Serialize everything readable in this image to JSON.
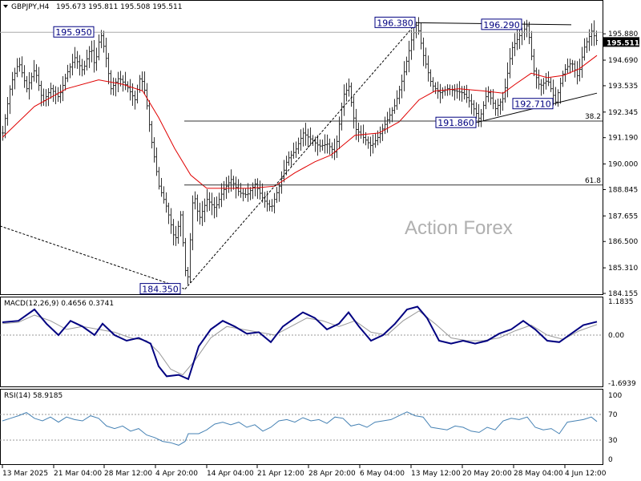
{
  "header": {
    "symbol": "GBPJPY,H4",
    "ohlc": "195.673 195.811 195.508 195.511"
  },
  "watermark": "Action Forex",
  "colors": {
    "price": "#333333",
    "ma": "#e00000",
    "macd": "#000080",
    "signal": "#999999",
    "rsi": "#4682b4",
    "annotation": "#000080"
  },
  "chart_data": [
    {
      "type": "candlestick",
      "title": "GBPJPY,H4",
      "ylim": [
        184.155,
        196.9
      ],
      "y_ticks": [
        195.88,
        194.69,
        193.535,
        192.345,
        191.19,
        190.0,
        188.845,
        187.655,
        186.5,
        185.31,
        184.155
      ],
      "y_tick_labels": [
        "195.880",
        "194.690",
        "193.535",
        "192.345",
        "191.190",
        "190.000",
        "188.845",
        "187.655",
        "186.500",
        "185.310",
        "184.155"
      ],
      "current_price": "195.511",
      "x_tick_labels": [
        "13 Mar 2025",
        "21 Mar 04:00",
        "28 Mar 12:00",
        "4 Apr 20:00",
        "14 Apr 04:00",
        "21 Apr 12:00",
        "28 Apr 20:00",
        "6 May 04:00",
        "13 May 12:00",
        "20 May 20:00",
        "28 May 04:00",
        "4 Jun 12:00"
      ],
      "price_path": [
        [
          0,
          191.4
        ],
        [
          10,
          193.6
        ],
        [
          20,
          194.6
        ],
        [
          30,
          193.4
        ],
        [
          40,
          194.3
        ],
        [
          50,
          192.8
        ],
        [
          60,
          193.4
        ],
        [
          70,
          193.0
        ],
        [
          80,
          194.1
        ],
        [
          90,
          194.8
        ],
        [
          100,
          194.2
        ],
        [
          110,
          195.3
        ],
        [
          115,
          194.4
        ],
        [
          122,
          195.95
        ],
        [
          128,
          195.0
        ],
        [
          135,
          193.4
        ],
        [
          145,
          193.9
        ],
        [
          155,
          193.5
        ],
        [
          165,
          192.9
        ],
        [
          172,
          194.0
        ],
        [
          178,
          193.2
        ],
        [
          185,
          191.2
        ],
        [
          195,
          189.0
        ],
        [
          205,
          188.0
        ],
        [
          215,
          186.5
        ],
        [
          222,
          187.7
        ],
        [
          230,
          184.35
        ],
        [
          238,
          188.8
        ],
        [
          245,
          187.5
        ],
        [
          255,
          188.4
        ],
        [
          265,
          188.0
        ],
        [
          275,
          188.8
        ],
        [
          285,
          189.3
        ],
        [
          295,
          188.7
        ],
        [
          305,
          188.6
        ],
        [
          315,
          189.1
        ],
        [
          325,
          188.4
        ],
        [
          335,
          188.0
        ],
        [
          345,
          189.0
        ],
        [
          355,
          190.2
        ],
        [
          365,
          190.6
        ],
        [
          375,
          191.4
        ],
        [
          385,
          191.1
        ],
        [
          395,
          190.8
        ],
        [
          405,
          190.9
        ],
        [
          415,
          190.5
        ],
        [
          425,
          193.1
        ],
        [
          432,
          193.5
        ],
        [
          440,
          191.6
        ],
        [
          450,
          191.2
        ],
        [
          460,
          190.8
        ],
        [
          470,
          191.3
        ],
        [
          480,
          192.0
        ],
        [
          490,
          192.7
        ],
        [
          500,
          194.0
        ],
        [
          510,
          195.6
        ],
        [
          517,
          196.38
        ],
        [
          525,
          194.9
        ],
        [
          535,
          193.6
        ],
        [
          545,
          193.2
        ],
        [
          555,
          193.4
        ],
        [
          565,
          193.3
        ],
        [
          575,
          193.2
        ],
        [
          585,
          192.7
        ],
        [
          595,
          192.0
        ],
        [
          605,
          193.3
        ],
        [
          615,
          192.5
        ],
        [
          625,
          193.0
        ],
        [
          635,
          195.2
        ],
        [
          645,
          195.8
        ],
        [
          655,
          196.29
        ],
        [
          662,
          194.3
        ],
        [
          670,
          193.5
        ],
        [
          680,
          193.8
        ],
        [
          690,
          192.8
        ],
        [
          700,
          194.2
        ],
        [
          710,
          194.6
        ],
        [
          718,
          193.9
        ],
        [
          725,
          195.2
        ],
        [
          735,
          196.0
        ],
        [
          742,
          195.51
        ]
      ],
      "moving_average": [
        [
          0,
          191.2
        ],
        [
          40,
          192.6
        ],
        [
          80,
          193.4
        ],
        [
          120,
          193.8
        ],
        [
          150,
          193.6
        ],
        [
          175,
          193.3
        ],
        [
          195,
          192.1
        ],
        [
          215,
          190.7
        ],
        [
          235,
          189.5
        ],
        [
          255,
          188.9
        ],
        [
          280,
          188.9
        ],
        [
          310,
          188.9
        ],
        [
          340,
          189.0
        ],
        [
          365,
          189.6
        ],
        [
          390,
          190.1
        ],
        [
          410,
          190.4
        ],
        [
          440,
          191.3
        ],
        [
          470,
          191.4
        ],
        [
          495,
          191.9
        ],
        [
          520,
          192.9
        ],
        [
          540,
          193.3
        ],
        [
          570,
          193.4
        ],
        [
          600,
          193.3
        ],
        [
          625,
          193.2
        ],
        [
          640,
          193.6
        ],
        [
          660,
          194.1
        ],
        [
          680,
          193.9
        ],
        [
          700,
          194.0
        ],
        [
          720,
          194.3
        ],
        [
          742,
          194.9
        ]
      ],
      "levels": [
        {
          "label": "196.380",
          "value": 196.38
        },
        {
          "label": "196.290",
          "value": 196.29
        },
        {
          "label": "195.950",
          "value": 195.95
        },
        {
          "label": "192.710",
          "value": 192.71
        },
        {
          "label": "191.860",
          "value": 191.86
        },
        {
          "label": "184.350",
          "value": 184.35
        }
      ],
      "fib_levels": [
        {
          "label": "38.2",
          "value": 191.94
        },
        {
          "label": "61.8",
          "value": 189.05
        }
      ],
      "grid": false
    },
    {
      "type": "line",
      "title": "MACD(12,26,9) 0.4656 0.3741",
      "ylim": [
        -1.6939,
        1.1835
      ],
      "y_tick_labels": [
        "1.1835",
        "0.00",
        "-1.6939"
      ],
      "series": [
        {
          "name": "MACD",
          "values": [
            [
              0,
              0.45
            ],
            [
              20,
              0.5
            ],
            [
              40,
              0.9
            ],
            [
              55,
              0.4
            ],
            [
              70,
              0.0
            ],
            [
              85,
              0.5
            ],
            [
              100,
              0.3
            ],
            [
              115,
              0.0
            ],
            [
              125,
              0.4
            ],
            [
              140,
              0.0
            ],
            [
              155,
              -0.2
            ],
            [
              170,
              -0.1
            ],
            [
              185,
              -0.3
            ],
            [
              195,
              -1.1
            ],
            [
              205,
              -1.45
            ],
            [
              220,
              -1.4
            ],
            [
              232,
              -1.55
            ],
            [
              245,
              -0.4
            ],
            [
              260,
              0.2
            ],
            [
              275,
              0.5
            ],
            [
              290,
              0.3
            ],
            [
              305,
              0.05
            ],
            [
              320,
              0.1
            ],
            [
              335,
              -0.25
            ],
            [
              350,
              0.3
            ],
            [
              360,
              0.5
            ],
            [
              375,
              0.8
            ],
            [
              390,
              0.6
            ],
            [
              405,
              0.2
            ],
            [
              420,
              0.4
            ],
            [
              432,
              0.8
            ],
            [
              445,
              0.3
            ],
            [
              460,
              -0.2
            ],
            [
              475,
              0.0
            ],
            [
              490,
              0.4
            ],
            [
              505,
              0.9
            ],
            [
              518,
              1.0
            ],
            [
              530,
              0.6
            ],
            [
              545,
              -0.2
            ],
            [
              560,
              -0.3
            ],
            [
              575,
              -0.2
            ],
            [
              590,
              -0.3
            ],
            [
              605,
              -0.2
            ],
            [
              620,
              0.05
            ],
            [
              635,
              0.2
            ],
            [
              650,
              0.5
            ],
            [
              665,
              0.2
            ],
            [
              680,
              -0.2
            ],
            [
              695,
              -0.25
            ],
            [
              710,
              0.05
            ],
            [
              725,
              0.35
            ],
            [
              742,
              0.47
            ]
          ]
        },
        {
          "name": "Signal",
          "values": [
            [
              0,
              0.4
            ],
            [
              20,
              0.45
            ],
            [
              40,
              0.7
            ],
            [
              60,
              0.5
            ],
            [
              80,
              0.2
            ],
            [
              100,
              0.3
            ],
            [
              120,
              0.2
            ],
            [
              140,
              0.1
            ],
            [
              160,
              -0.1
            ],
            [
              180,
              -0.2
            ],
            [
              195,
              -0.6
            ],
            [
              210,
              -1.2
            ],
            [
              225,
              -1.4
            ],
            [
              240,
              -0.9
            ],
            [
              260,
              -0.1
            ],
            [
              280,
              0.3
            ],
            [
              300,
              0.2
            ],
            [
              320,
              0.1
            ],
            [
              340,
              0.0
            ],
            [
              360,
              0.3
            ],
            [
              380,
              0.6
            ],
            [
              400,
              0.5
            ],
            [
              420,
              0.3
            ],
            [
              440,
              0.5
            ],
            [
              460,
              0.1
            ],
            [
              480,
              0.0
            ],
            [
              500,
              0.5
            ],
            [
              520,
              0.85
            ],
            [
              540,
              0.4
            ],
            [
              560,
              -0.1
            ],
            [
              580,
              -0.2
            ],
            [
              600,
              -0.2
            ],
            [
              620,
              -0.1
            ],
            [
              640,
              0.15
            ],
            [
              660,
              0.35
            ],
            [
              680,
              0.0
            ],
            [
              700,
              -0.15
            ],
            [
              720,
              0.15
            ],
            [
              742,
              0.37
            ]
          ]
        }
      ]
    },
    {
      "type": "line",
      "title": "RSI(14) 58.9185",
      "ylim": [
        0,
        100
      ],
      "y_tick_labels": [
        "100",
        "70",
        "30",
        "0"
      ],
      "reference_lines": [
        70,
        30
      ],
      "series": [
        {
          "name": "RSI(14)",
          "values": [
            [
              0,
              60
            ],
            [
              10,
              64
            ],
            [
              20,
              68
            ],
            [
              30,
              73
            ],
            [
              40,
              64
            ],
            [
              50,
              60
            ],
            [
              60,
              66
            ],
            [
              70,
              58
            ],
            [
              80,
              66
            ],
            [
              90,
              62
            ],
            [
              100,
              60
            ],
            [
              110,
              68
            ],
            [
              120,
              64
            ],
            [
              130,
              52
            ],
            [
              140,
              48
            ],
            [
              150,
              52
            ],
            [
              160,
              44
            ],
            [
              170,
              48
            ],
            [
              180,
              38
            ],
            [
              190,
              34
            ],
            [
              200,
              28
            ],
            [
              210,
              26
            ],
            [
              220,
              22
            ],
            [
              228,
              28
            ],
            [
              232,
              40
            ],
            [
              245,
              40
            ],
            [
              255,
              46
            ],
            [
              265,
              55
            ],
            [
              275,
              58
            ],
            [
              285,
              54
            ],
            [
              295,
              58
            ],
            [
              305,
              50
            ],
            [
              315,
              54
            ],
            [
              325,
              44
            ],
            [
              335,
              50
            ],
            [
              345,
              60
            ],
            [
              355,
              62
            ],
            [
              365,
              58
            ],
            [
              375,
              65
            ],
            [
              385,
              60
            ],
            [
              395,
              62
            ],
            [
              405,
              56
            ],
            [
              415,
              66
            ],
            [
              425,
              64
            ],
            [
              435,
              52
            ],
            [
              445,
              55
            ],
            [
              455,
              50
            ],
            [
              465,
              58
            ],
            [
              475,
              60
            ],
            [
              485,
              62
            ],
            [
              495,
              68
            ],
            [
              505,
              74
            ],
            [
              515,
              68
            ],
            [
              525,
              66
            ],
            [
              535,
              50
            ],
            [
              545,
              48
            ],
            [
              555,
              46
            ],
            [
              565,
              52
            ],
            [
              575,
              50
            ],
            [
              585,
              44
            ],
            [
              595,
              42
            ],
            [
              605,
              50
            ],
            [
              615,
              46
            ],
            [
              625,
              60
            ],
            [
              635,
              64
            ],
            [
              645,
              62
            ],
            [
              655,
              66
            ],
            [
              665,
              50
            ],
            [
              675,
              46
            ],
            [
              685,
              48
            ],
            [
              695,
              40
            ],
            [
              705,
              58
            ],
            [
              715,
              60
            ],
            [
              725,
              62
            ],
            [
              735,
              66
            ],
            [
              742,
              59
            ]
          ]
        }
      ]
    }
  ]
}
